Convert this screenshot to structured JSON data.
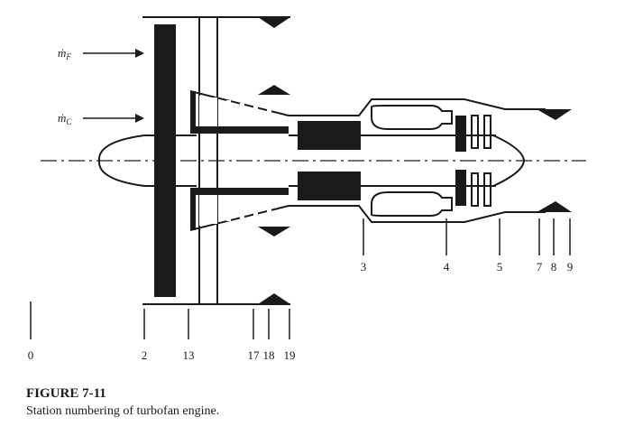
{
  "figure": {
    "title": "FIGURE 7-11",
    "caption": "Station numbering of turbofan engine."
  },
  "flows": [
    {
      "id": "fan",
      "symbol": "ṁ",
      "subscript": "F"
    },
    {
      "id": "core",
      "symbol": "ṁ",
      "subscript": "C"
    }
  ],
  "stations": {
    "lower": [
      "0",
      "2",
      "13",
      "17",
      "18",
      "19"
    ],
    "upper": [
      "3",
      "4",
      "5",
      "7",
      "8",
      "9"
    ]
  },
  "colors": {
    "ink": "#1a1a1a",
    "paper": "#ffffff"
  }
}
